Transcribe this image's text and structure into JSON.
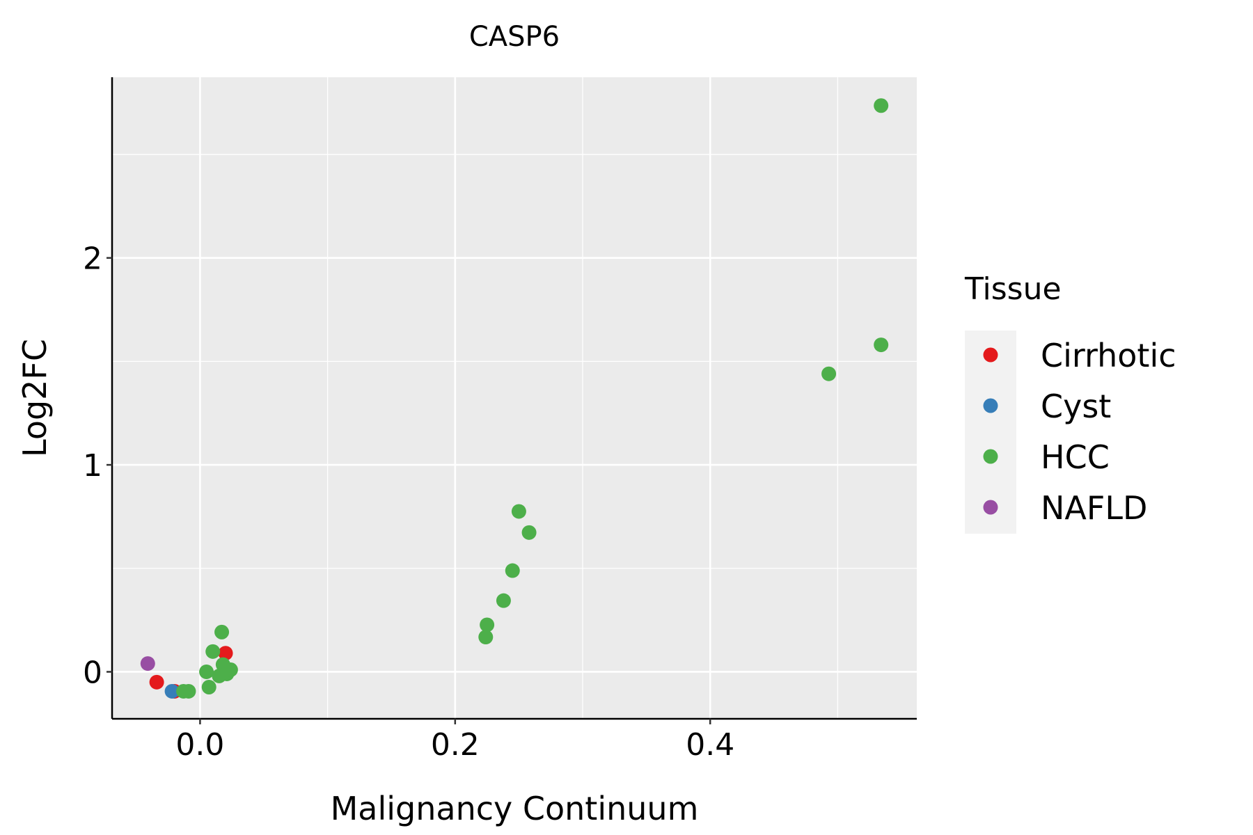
{
  "chart_data": {
    "type": "scatter",
    "title": "CASP6",
    "xlabel": "Malignancy Continuum",
    "ylabel": "Log2FC",
    "xlim": [
      -0.069,
      0.562
    ],
    "ylim": [
      -0.227,
      2.873
    ],
    "xticks": [
      0.0,
      0.2,
      0.4
    ],
    "xtick_labels": [
      "0.0",
      "0.2",
      "0.4"
    ],
    "yticks": [
      0,
      1,
      2
    ],
    "ytick_labels": [
      "0",
      "1",
      "2"
    ],
    "grid": true,
    "legend": {
      "title": "Tissue",
      "placement": "right"
    },
    "series": [
      {
        "name": "Cirrhotic",
        "color": "#E41A1C",
        "points": [
          [
            0.02,
            0.09
          ],
          [
            -0.034,
            -0.05
          ],
          [
            -0.02,
            -0.094
          ]
        ]
      },
      {
        "name": "Cyst",
        "color": "#377EB8",
        "points": [
          [
            -0.022,
            -0.094
          ]
        ]
      },
      {
        "name": "HCC",
        "color": "#4DAF4A",
        "points": [
          [
            0.534,
            2.736
          ],
          [
            0.534,
            1.58
          ],
          [
            0.493,
            1.44
          ],
          [
            0.25,
            0.775
          ],
          [
            0.258,
            0.673
          ],
          [
            0.245,
            0.489
          ],
          [
            0.238,
            0.344
          ],
          [
            0.225,
            0.227
          ],
          [
            0.224,
            0.168
          ],
          [
            0.017,
            0.192
          ],
          [
            0.01,
            0.098
          ],
          [
            0.005,
            0.0
          ],
          [
            0.007,
            -0.074
          ],
          [
            -0.009,
            -0.094
          ],
          [
            -0.013,
            -0.094
          ],
          [
            0.015,
            -0.02
          ],
          [
            0.018,
            0.035
          ],
          [
            0.021,
            -0.01
          ],
          [
            0.024,
            0.01
          ]
        ]
      },
      {
        "name": "NAFLD",
        "color": "#984EA3",
        "points": [
          [
            -0.041,
            0.04
          ]
        ]
      }
    ]
  }
}
